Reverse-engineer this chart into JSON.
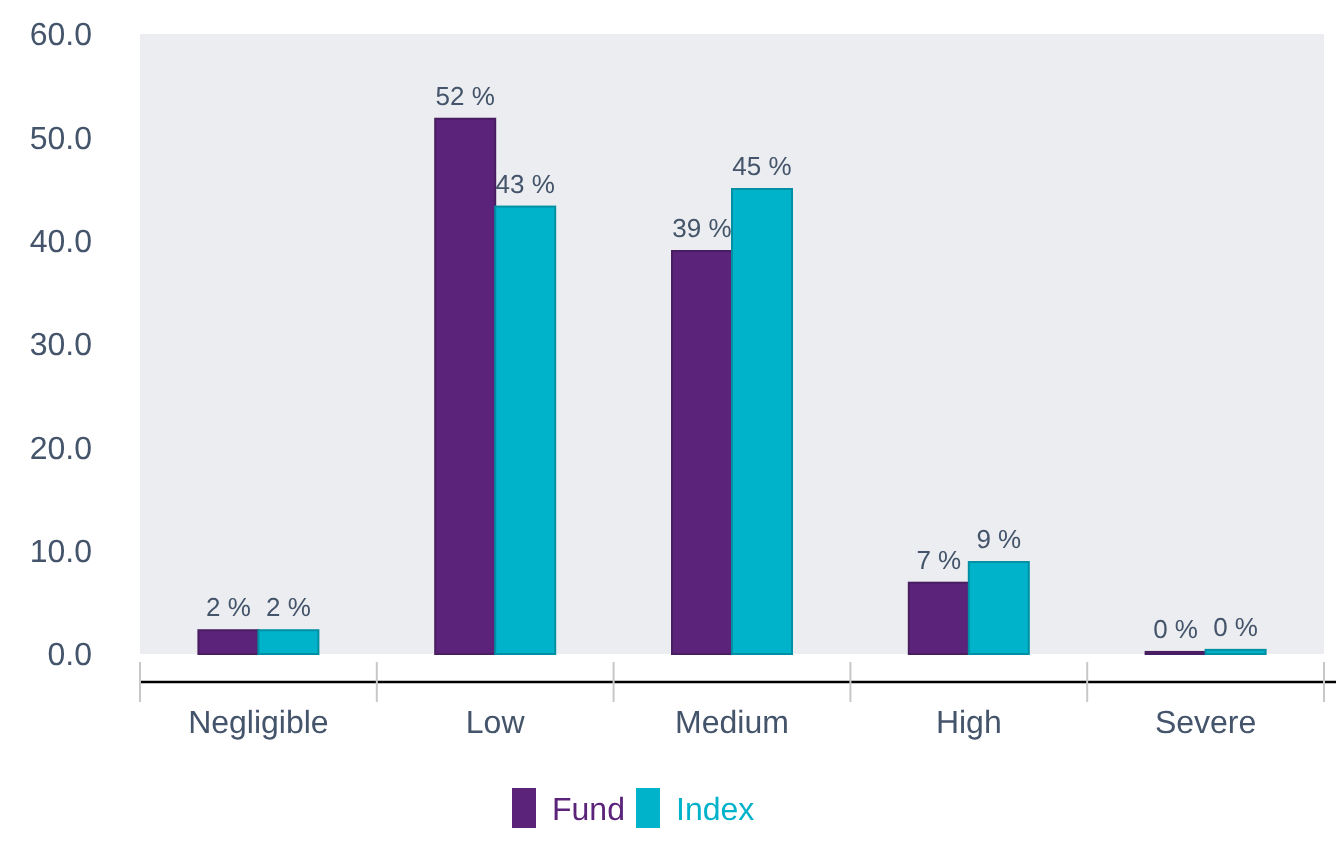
{
  "chart_data": {
    "type": "bar",
    "categories": [
      "Negligible",
      "Low",
      "Medium",
      "High",
      "Severe"
    ],
    "series": [
      {
        "name": "Fund",
        "color": "#5b247a",
        "values": [
          2.3,
          51.8,
          39.0,
          6.9,
          0.2
        ],
        "value_labels": [
          "2 %",
          "52 %",
          "39 %",
          "7 %",
          "0 %"
        ]
      },
      {
        "name": "Index",
        "color": "#00b2ca",
        "values": [
          2.3,
          43.3,
          45.0,
          8.9,
          0.4
        ],
        "value_labels": [
          "2 %",
          "43 %",
          "45 %",
          "9 %",
          "0 %"
        ]
      }
    ],
    "ylim": [
      0,
      60
    ],
    "yticks": [
      {
        "value": 0,
        "label": "0.0"
      },
      {
        "value": 10,
        "label": "10.0"
      },
      {
        "value": 20,
        "label": "20.0"
      },
      {
        "value": 30,
        "label": "30.0"
      },
      {
        "value": 40,
        "label": "40.0"
      },
      {
        "value": 50,
        "label": "50.0"
      },
      {
        "value": 60,
        "label": "60.0"
      }
    ],
    "grid": false,
    "legend": "bottom"
  }
}
